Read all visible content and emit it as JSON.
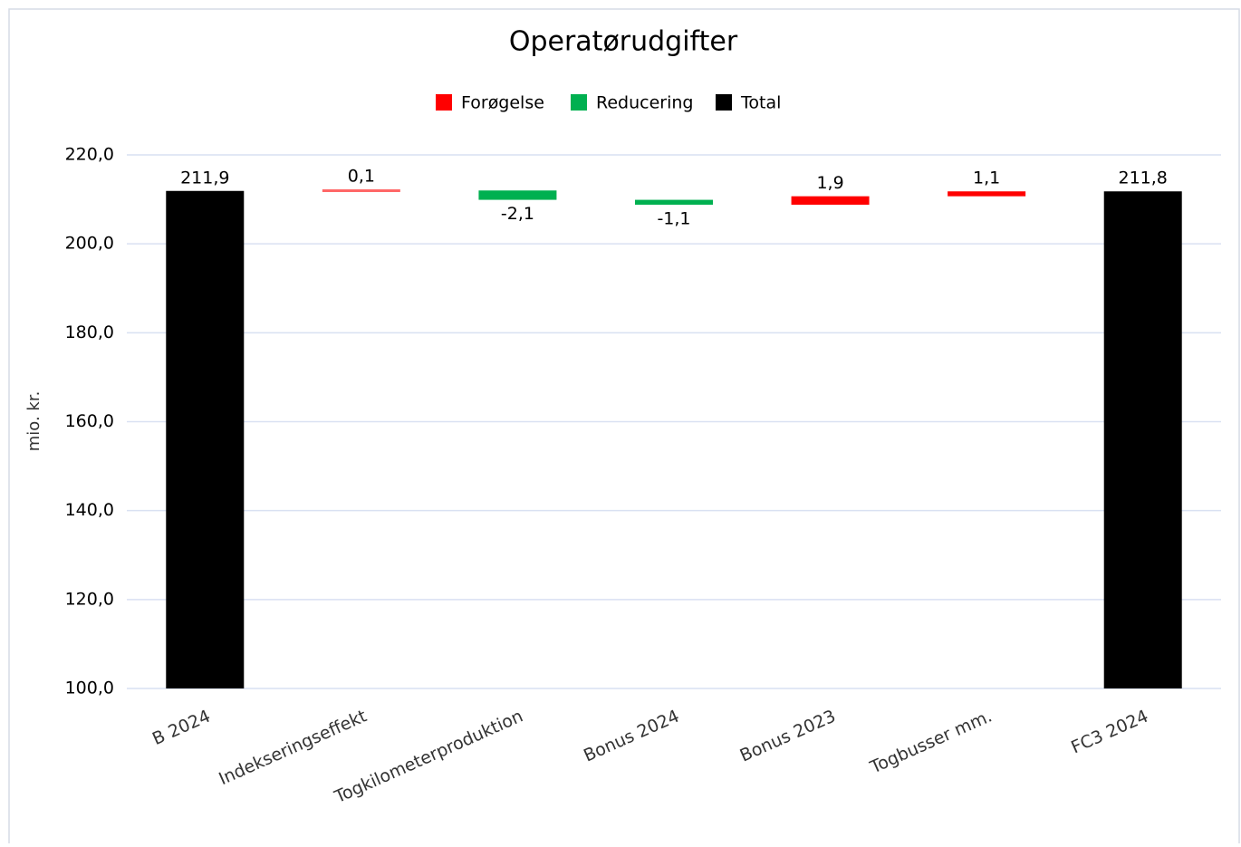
{
  "chart_data": {
    "type": "waterfall",
    "title": "Operatørudgifter",
    "y_label": "mio. kr.",
    "categories": [
      "B 2024",
      "Indekseringseffekt",
      "Togkilometerproduktion",
      "Bonus 2024",
      "Bonus 2023",
      "Togbusser mm.",
      "FC3 2024"
    ],
    "series": [
      {
        "name": "Forøgelse",
        "color": "#ff0000",
        "values": [
          null,
          0.1,
          null,
          null,
          1.9,
          1.1,
          null
        ],
        "value_labels": [
          null,
          "0,1",
          null,
          null,
          "1,9",
          "1,1",
          null
        ]
      },
      {
        "name": "Reducering",
        "color": "#00b050",
        "values": [
          null,
          null,
          -2.1,
          -1.1,
          null,
          null,
          null
        ],
        "value_labels": [
          null,
          null,
          "-2,1",
          "-1,1",
          null,
          null,
          null
        ]
      },
      {
        "name": "Total",
        "color": "#000000",
        "values": [
          211.9,
          null,
          null,
          null,
          null,
          null,
          211.8
        ],
        "value_labels": [
          "211,9",
          null,
          null,
          null,
          null,
          null,
          "211,8"
        ]
      }
    ],
    "ylim": [
      100,
      220
    ],
    "yticks": [
      {
        "value": 100,
        "label": "100,0"
      },
      {
        "value": 120,
        "label": "120,0"
      },
      {
        "value": 140,
        "label": "140,0"
      },
      {
        "value": 160,
        "label": "160,0"
      },
      {
        "value": 180,
        "label": "180,0"
      },
      {
        "value": 200,
        "label": "200,0"
      },
      {
        "value": 220,
        "label": "220,0"
      }
    ],
    "grid": true,
    "legend": "top"
  }
}
